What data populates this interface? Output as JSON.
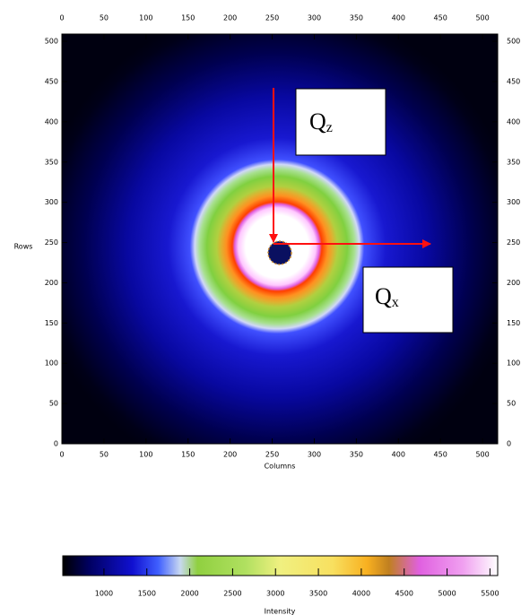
{
  "chart_data": {
    "type": "image",
    "xlabel": "Columns",
    "ylabel": "Rows",
    "xlim": [
      0,
      518
    ],
    "ylim": [
      0,
      509
    ],
    "xticks": [
      0,
      50,
      100,
      150,
      200,
      250,
      300,
      350,
      400,
      450,
      500
    ],
    "yticks": [
      0,
      50,
      100,
      150,
      200,
      250,
      300,
      350,
      400,
      450,
      500
    ],
    "colorbar": {
      "label": "Intensity",
      "clim": [
        520,
        5590
      ],
      "ticks": [
        1000,
        1500,
        2000,
        2500,
        3000,
        3500,
        4000,
        4500,
        5000,
        5500
      ]
    },
    "annotations": [
      {
        "text": "Q",
        "subscript": "z"
      },
      {
        "text": "Q",
        "subscript": "x"
      }
    ]
  }
}
